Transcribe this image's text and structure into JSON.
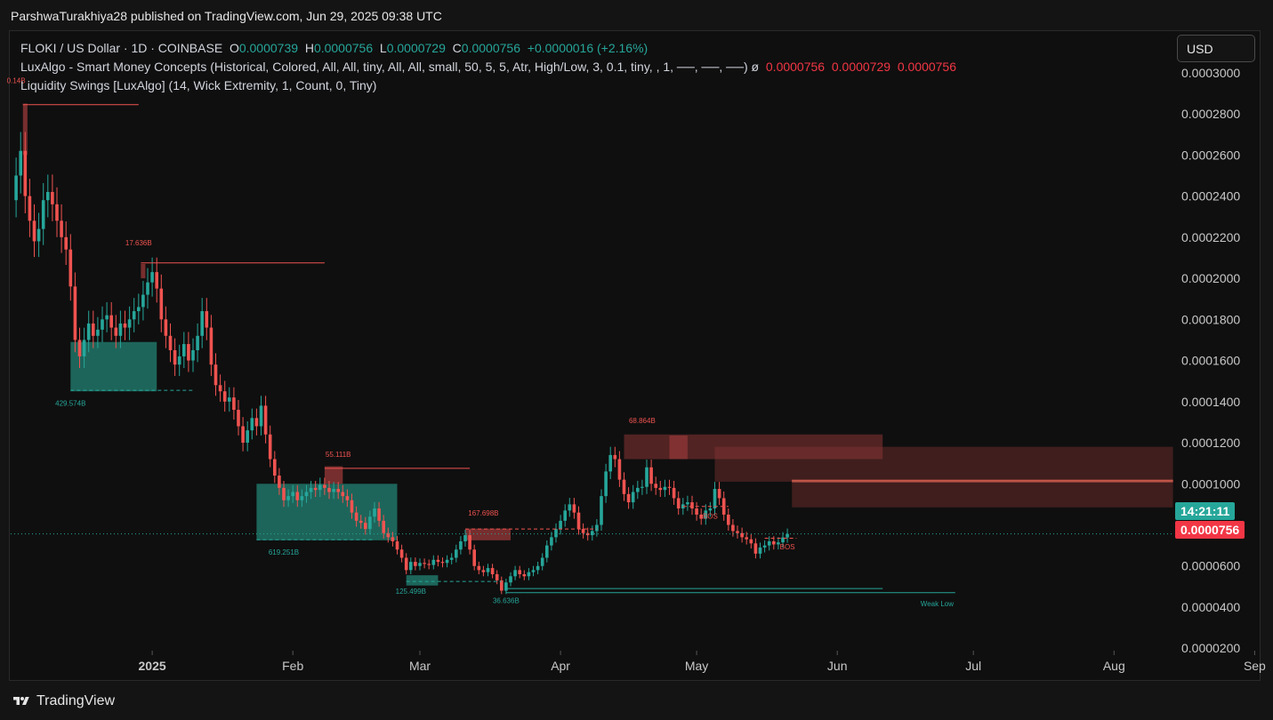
{
  "header": {
    "published_text": "ParshwaTurakhiya28 published on TradingView.com, Jun 29, 2025 09:38 UTC"
  },
  "legend": {
    "symbol": "FLOKI / US Dollar · 1D · COINBASE",
    "o_label": "O",
    "o_value": "0.0000739",
    "h_label": "H",
    "h_value": "0.0000756",
    "l_label": "L",
    "l_value": "0.0000729",
    "c_label": "C",
    "c_value": "0.0000756",
    "change": "+0.0000016 (+2.16%)",
    "indicator1": "LuxAlgo - Smart Money Concepts (Historical, Colored, All, All, tiny, All, All, small, 50, 5, 5, Atr, High/Low, 3, 0.1, tiny, , 1, ──, ──, ──)",
    "indicator1_symbol": "ø",
    "indicator1_values": [
      "0.0000756",
      "0.0000729",
      "0.0000756"
    ],
    "indicator2": "Liquidity Swings [LuxAlgo] (14, Wick Extremity, 1, Count, 0, Tiny)"
  },
  "currency_button": "USD",
  "countdown": "14:21:11",
  "last_price_badge": "0.0000756",
  "colors": {
    "up": "#26a69a",
    "down": "#ef5350",
    "countdown_bg": "#26a69a",
    "price_bg": "#f23645",
    "demand_zone": "#1f6f63",
    "supply_zone": "#8a3434"
  },
  "footer": {
    "brand": "TradingView",
    "logo_icon": "tradingview-logo-icon"
  },
  "chart_data": {
    "type": "candlestick",
    "title": "FLOKI / US Dollar · 1D · COINBASE",
    "xlabel": "",
    "ylabel": "",
    "ylim": [
      1.75e-05,
      0.000306
    ],
    "y_ticks": [
      "0.0003000",
      "0.0002800",
      "0.0002600",
      "0.0002400",
      "0.0002200",
      "0.0002000",
      "0.0001800",
      "0.0001600",
      "0.0001400",
      "0.0001200",
      "0.0001000",
      "0.0000600",
      "0.0000400",
      "0.0000200"
    ],
    "x_ticks": [
      {
        "label": "2025",
        "day": 31
      },
      {
        "label": "Feb",
        "day": 62
      },
      {
        "label": "Mar",
        "day": 90
      },
      {
        "label": "Apr",
        "day": 121
      },
      {
        "label": "May",
        "day": 151
      },
      {
        "label": "Jun",
        "day": 182
      },
      {
        "label": "Jul",
        "day": 212
      },
      {
        "label": "Aug",
        "day": 243
      },
      {
        "label": "Sep",
        "day": 274
      }
    ],
    "x_range_days": [
      0,
      281
    ],
    "series": [
      {
        "type": "close",
        "points": [
          [
            0,
            0.000238
          ],
          [
            1,
            0.00025
          ],
          [
            2,
            0.000262
          ],
          [
            3,
            0.00024
          ],
          [
            4,
            0.000228
          ],
          [
            5,
            0.000218
          ],
          [
            6,
            0.000224
          ],
          [
            7,
            0.000238
          ],
          [
            8,
            0.000242
          ],
          [
            9,
            0.000236
          ],
          [
            10,
            0.000228
          ],
          [
            11,
            0.00022
          ],
          [
            12,
            0.000214
          ],
          [
            13,
            0.000196
          ],
          [
            14,
            0.00017
          ],
          [
            15,
            0.000162
          ],
          [
            16,
            0.00017
          ],
          [
            17,
            0.000178
          ],
          [
            18,
            0.000172
          ],
          [
            19,
            0.000175
          ],
          [
            20,
            0.00018
          ],
          [
            21,
            0.000182
          ],
          [
            22,
            0.000176
          ],
          [
            23,
            0.000172
          ],
          [
            24,
            0.000178
          ],
          [
            25,
            0.000176
          ],
          [
            26,
            0.00018
          ],
          [
            27,
            0.000184
          ],
          [
            28,
            0.000186
          ],
          [
            29,
            0.000192
          ],
          [
            30,
            0.000198
          ],
          [
            31,
            0.000203
          ],
          [
            32,
            0.000195
          ],
          [
            33,
            0.00018
          ],
          [
            34,
            0.000172
          ],
          [
            35,
            0.000165
          ],
          [
            36,
            0.000158
          ],
          [
            37,
            0.000162
          ],
          [
            38,
            0.000168
          ],
          [
            39,
            0.00016
          ],
          [
            40,
            0.000165
          ],
          [
            41,
            0.000172
          ],
          [
            42,
            0.000184
          ],
          [
            43,
            0.000176
          ],
          [
            44,
            0.000158
          ],
          [
            45,
            0.000148
          ],
          [
            46,
            0.000145
          ],
          [
            47,
            0.00014
          ],
          [
            48,
            0.000142
          ],
          [
            49,
            0.000136
          ],
          [
            50,
            0.000128
          ],
          [
            51,
            0.00012
          ],
          [
            52,
            0.000126
          ],
          [
            53,
            0.000132
          ],
          [
            54,
            0.000128
          ],
          [
            55,
            0.000138
          ],
          [
            56,
            0.000124
          ],
          [
            57,
            0.000112
          ],
          [
            58,
            0.000104
          ],
          [
            59,
            9.8e-05
          ],
          [
            60,
            9.2e-05
          ],
          [
            61,
            9.4e-05
          ],
          [
            62,
            9.6e-05
          ],
          [
            63,
            9.2e-05
          ],
          [
            64,
            9.4e-05
          ],
          [
            65,
            9.6e-05
          ],
          [
            66,
            9.8e-05
          ],
          [
            67,
            9.7e-05
          ],
          [
            68,
            9.95e-05
          ],
          [
            69,
            9.8e-05
          ],
          [
            70,
            9.6e-05
          ],
          [
            71,
            9.75e-05
          ],
          [
            72,
            9.6e-05
          ],
          [
            73,
            9.4e-05
          ],
          [
            74,
            9.2e-05
          ],
          [
            75,
            8.6e-05
          ],
          [
            76,
            8.2e-05
          ],
          [
            77,
            8.1e-05
          ],
          [
            78,
            7.8e-05
          ],
          [
            79,
            8.4e-05
          ],
          [
            80,
            8.8e-05
          ],
          [
            81,
            8.2e-05
          ],
          [
            82,
            7.6e-05
          ],
          [
            83,
            7.4e-05
          ],
          [
            84,
            7.2e-05
          ],
          [
            85,
            6.8e-05
          ],
          [
            86,
            6.4e-05
          ],
          [
            87,
            5.8e-05
          ],
          [
            88,
            6.2e-05
          ],
          [
            89,
            6e-05
          ],
          [
            90,
            6.15e-05
          ],
          [
            91,
            6.1e-05
          ],
          [
            92,
            6.05e-05
          ],
          [
            93,
            6.3e-05
          ],
          [
            94,
            6.2e-05
          ],
          [
            95,
            6.15e-05
          ],
          [
            96,
            6.3e-05
          ],
          [
            97,
            6.4e-05
          ],
          [
            98,
            6.8e-05
          ],
          [
            99,
            7.2e-05
          ],
          [
            100,
            7.5e-05
          ],
          [
            101,
            6.8e-05
          ],
          [
            102,
            6e-05
          ],
          [
            103,
            5.8e-05
          ],
          [
            104,
            5.7e-05
          ],
          [
            105,
            5.9e-05
          ],
          [
            106,
            5.6e-05
          ],
          [
            107,
            5.3e-05
          ],
          [
            108,
            4.8e-05
          ],
          [
            109,
            5.2e-05
          ],
          [
            110,
            5.5e-05
          ],
          [
            111,
            5.8e-05
          ],
          [
            112,
            5.6e-05
          ],
          [
            113,
            5.5e-05
          ],
          [
            114,
            5.7e-05
          ],
          [
            115,
            5.8e-05
          ],
          [
            116,
            6e-05
          ],
          [
            117,
            6.4e-05
          ],
          [
            118,
            7e-05
          ],
          [
            119,
            7.4e-05
          ],
          [
            120,
            7.8e-05
          ],
          [
            121,
            8.2e-05
          ],
          [
            122,
            8.7e-05
          ],
          [
            123,
            9e-05
          ],
          [
            124,
            8.6e-05
          ],
          [
            125,
            7.8e-05
          ],
          [
            126,
            7.6e-05
          ],
          [
            127,
            7.5e-05
          ],
          [
            128,
            7.7e-05
          ],
          [
            129,
            8e-05
          ],
          [
            130,
            9.4e-05
          ],
          [
            131,
            0.000106
          ],
          [
            132,
            0.000114
          ],
          [
            133,
            0.000112
          ],
          [
            134,
            0.000102
          ],
          [
            135,
            9.5e-05
          ],
          [
            136,
            9.1e-05
          ],
          [
            137,
            9.6e-05
          ],
          [
            138,
            9.8e-05
          ],
          [
            139,
            9.85e-05
          ],
          [
            140,
            0.000108
          ],
          [
            141,
            0.0001
          ],
          [
            142,
            9.8e-05
          ],
          [
            143,
            9.7e-05
          ],
          [
            144,
            9.85e-05
          ],
          [
            145,
            9.8e-05
          ],
          [
            146,
            9.3e-05
          ],
          [
            147,
            8.8e-05
          ],
          [
            148,
            9e-05
          ],
          [
            149,
            9.1e-05
          ],
          [
            150,
            8.8e-05
          ],
          [
            151,
            8.5e-05
          ],
          [
            152,
            8.3e-05
          ],
          [
            153,
            8.7e-05
          ],
          [
            154,
            8.8e-05
          ],
          [
            155,
            9.75e-05
          ],
          [
            156,
            9.3e-05
          ],
          [
            157,
            8.5e-05
          ],
          [
            158,
            8e-05
          ],
          [
            159,
            7.7e-05
          ],
          [
            160,
            7.6e-05
          ],
          [
            161,
            7.4e-05
          ],
          [
            162,
            7.3e-05
          ],
          [
            163,
            7.1e-05
          ],
          [
            164,
            6.6e-05
          ],
          [
            165,
            6.9e-05
          ],
          [
            166,
            7e-05
          ],
          [
            167,
            7.2e-05
          ],
          [
            168,
            7.05e-05
          ],
          [
            169,
            7.15e-05
          ],
          [
            170,
            7.39e-05
          ],
          [
            171,
            7.56e-05
          ]
        ]
      }
    ],
    "annotations": [
      {
        "text": "0.14B",
        "kind": "liquidity",
        "x": 1,
        "y": 0.000295
      },
      {
        "text": "17.636B",
        "kind": "liquidity",
        "x": 28,
        "y": 0.000216
      },
      {
        "text": "429.574B",
        "kind": "liquidity",
        "x": 13,
        "y": 0.000138
      },
      {
        "text": "55.111B",
        "kind": "liquidity",
        "x": 72,
        "y": 0.000113
      },
      {
        "text": "619.251B",
        "kind": "liquidity",
        "x": 60,
        "y": 6.55e-05
      },
      {
        "text": "125.499B",
        "kind": "liquidity",
        "x": 88,
        "y": 4.65e-05
      },
      {
        "text": "167.698B",
        "kind": "liquidity",
        "x": 104,
        "y": 8.45e-05
      },
      {
        "text": "36.636B",
        "kind": "liquidity",
        "x": 109,
        "y": 4.2e-05
      },
      {
        "text": "68.864B",
        "kind": "liquidity",
        "x": 139,
        "y": 0.0001295
      },
      {
        "text": "BOS",
        "kind": "structure",
        "x": 154,
        "y": 8.3e-05
      },
      {
        "text": "BOS",
        "kind": "structure",
        "x": 171,
        "y": 6.8e-05
      },
      {
        "text": "Weak Low",
        "kind": "label",
        "x": 204,
        "y": 4.05e-05
      }
    ],
    "grid": false
  }
}
